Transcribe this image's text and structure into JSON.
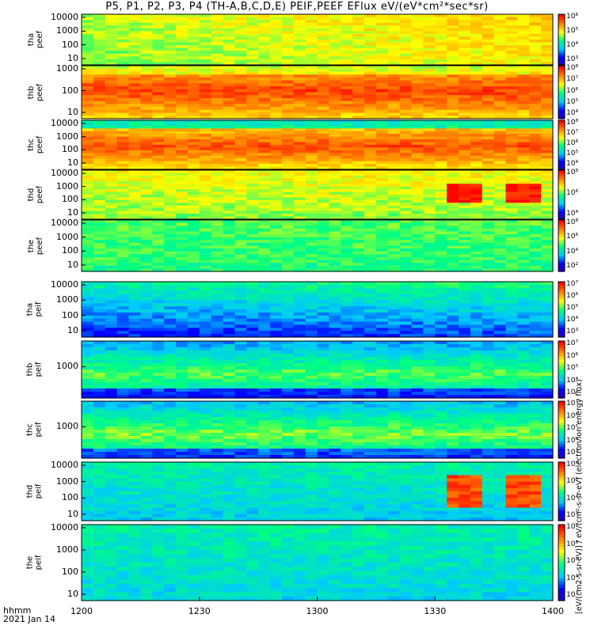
{
  "title": "P5, P1, P2, P3, P4 (TH-A,B,C,D,E) PEIF,PEEF EFlux eV/(eV*cm²*sec*sr)",
  "x_axis": {
    "ticks": [
      "1200",
      "1230",
      "1300",
      "1330",
      "1400"
    ],
    "label_line1": "hhmm",
    "label_line2": "2021 Jan 14"
  },
  "colorbar_title": "[eV/(cm2-s-sr-eV)] / eV/(cm²-s-sr-eV) (electron/ion energy flux)",
  "chart_data": {
    "type": "heatmap",
    "x_units": "hhmm",
    "x_range": [
      "1200",
      "1400"
    ],
    "y_scale": "log",
    "color_scale": "log",
    "colormap": [
      "#2b00a8",
      "#0000ff",
      "#00c8ff",
      "#00ff80",
      "#ffff00",
      "#ff8000",
      "#ff0000"
    ],
    "panels": [
      {
        "label_line1": "tha",
        "label_line2": "peef",
        "yticks": [
          "10000",
          "1000",
          "100",
          "10"
        ],
        "cbar": [
          "10⁶",
          "10⁵",
          "10⁴",
          "10³"
        ]
      },
      {
        "label_line1": "thb",
        "label_line2": "peef",
        "yticks": [
          "1000",
          "100",
          "10"
        ],
        "cbar": [
          "10⁸",
          "10⁷",
          "10⁶",
          "10⁵",
          "10⁴"
        ]
      },
      {
        "label_line1": "thc",
        "label_line2": "peef",
        "yticks": [
          "10000",
          "1000",
          "100",
          "10"
        ],
        "cbar": [
          "10⁸",
          "10⁷",
          "10⁶",
          "10⁵",
          "10⁴"
        ]
      },
      {
        "label_line1": "thd",
        "label_line2": "peef",
        "yticks": [
          "10000",
          "1000",
          "100",
          "10"
        ],
        "cbar": [
          "10⁸",
          "10⁶",
          "10⁴"
        ]
      },
      {
        "label_line1": "the",
        "label_line2": "peef",
        "yticks": [
          "10000",
          "1000",
          "100",
          "10"
        ],
        "cbar": [
          "10⁸",
          "10⁶",
          "10⁴",
          "10²"
        ]
      },
      {
        "label_line1": "tha",
        "label_line2": "peif",
        "yticks": [
          "10000",
          "1000",
          "100",
          "10"
        ],
        "cbar": [
          "10⁷",
          "10⁶",
          "10⁵",
          "10⁴",
          "10³"
        ]
      },
      {
        "label_line1": "thb",
        "label_line2": "peif",
        "yticks": [
          "1000"
        ],
        "cbar": [
          "10⁷",
          "10⁶",
          "10⁵",
          "10⁴",
          "10³"
        ]
      },
      {
        "label_line1": "thc",
        "label_line2": "peif",
        "yticks": [
          "1000"
        ],
        "cbar": [
          "10⁷",
          "10⁶",
          "10⁵",
          "10⁴",
          "10³"
        ]
      },
      {
        "label_line1": "thd",
        "label_line2": "peif",
        "yticks": [
          "10000",
          "1000",
          "100",
          "10"
        ],
        "cbar": [
          "10⁶",
          "10⁵",
          "10⁴",
          "10³"
        ]
      },
      {
        "label_line1": "the",
        "label_line2": "peif",
        "yticks": [
          "10000",
          "1000",
          "100",
          "10"
        ],
        "cbar": [
          "10⁷",
          "10⁶",
          "10⁵",
          "10⁴",
          "10³"
        ]
      }
    ]
  }
}
